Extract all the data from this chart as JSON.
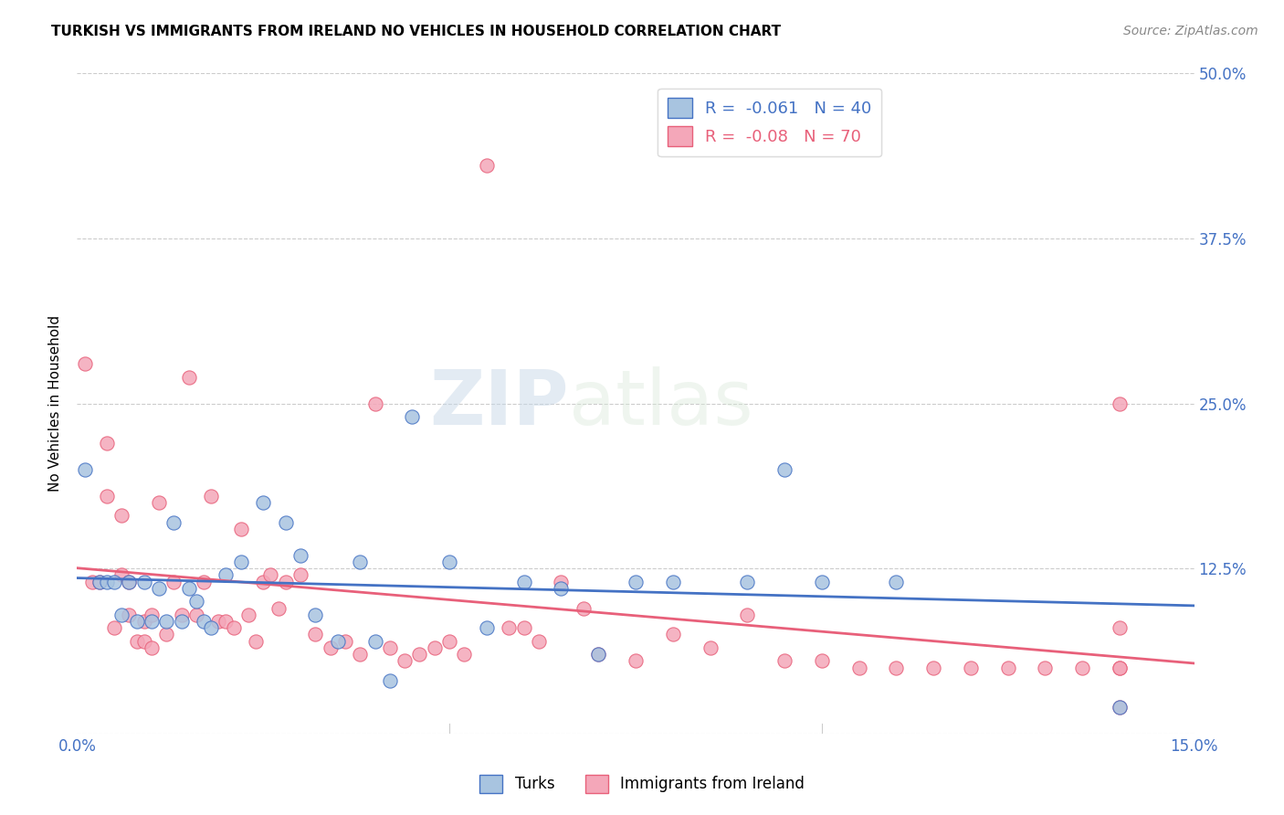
{
  "title": "TURKISH VS IMMIGRANTS FROM IRELAND NO VEHICLES IN HOUSEHOLD CORRELATION CHART",
  "source": "Source: ZipAtlas.com",
  "ylabel": "No Vehicles in Household",
  "xlim": [
    0.0,
    0.15
  ],
  "ylim": [
    0.0,
    0.5
  ],
  "xticks": [
    0.0,
    0.05,
    0.1,
    0.15
  ],
  "xticklabels": [
    "0.0%",
    "",
    "",
    "15.0%"
  ],
  "yticks": [
    0.0,
    0.125,
    0.25,
    0.375,
    0.5
  ],
  "right_yticklabels": [
    "",
    "12.5%",
    "25.0%",
    "37.5%",
    "50.0%"
  ],
  "turks_R": -0.061,
  "turks_N": 40,
  "ireland_R": -0.08,
  "ireland_N": 70,
  "turks_color": "#a8c4e0",
  "ireland_color": "#f4a7b9",
  "turks_line_color": "#4472c4",
  "ireland_line_color": "#e8607a",
  "legend_text_color": "#4472c4",
  "turks_x": [
    0.001,
    0.003,
    0.004,
    0.005,
    0.006,
    0.007,
    0.008,
    0.009,
    0.01,
    0.011,
    0.012,
    0.013,
    0.014,
    0.015,
    0.016,
    0.017,
    0.018,
    0.02,
    0.022,
    0.025,
    0.028,
    0.03,
    0.032,
    0.035,
    0.038,
    0.04,
    0.042,
    0.045,
    0.05,
    0.055,
    0.06,
    0.065,
    0.07,
    0.075,
    0.08,
    0.09,
    0.095,
    0.1,
    0.11,
    0.14
  ],
  "turks_y": [
    0.2,
    0.115,
    0.115,
    0.115,
    0.09,
    0.115,
    0.085,
    0.115,
    0.085,
    0.11,
    0.085,
    0.16,
    0.085,
    0.11,
    0.1,
    0.085,
    0.08,
    0.12,
    0.13,
    0.175,
    0.16,
    0.135,
    0.09,
    0.07,
    0.13,
    0.07,
    0.04,
    0.24,
    0.13,
    0.08,
    0.115,
    0.11,
    0.06,
    0.115,
    0.115,
    0.115,
    0.2,
    0.115,
    0.115,
    0.02
  ],
  "ireland_x": [
    0.001,
    0.002,
    0.003,
    0.004,
    0.004,
    0.005,
    0.006,
    0.006,
    0.007,
    0.007,
    0.008,
    0.009,
    0.009,
    0.01,
    0.01,
    0.011,
    0.012,
    0.013,
    0.014,
    0.015,
    0.016,
    0.017,
    0.018,
    0.019,
    0.02,
    0.021,
    0.022,
    0.023,
    0.024,
    0.025,
    0.026,
    0.027,
    0.028,
    0.03,
    0.032,
    0.034,
    0.036,
    0.038,
    0.04,
    0.042,
    0.044,
    0.046,
    0.048,
    0.05,
    0.052,
    0.055,
    0.058,
    0.06,
    0.062,
    0.065,
    0.068,
    0.07,
    0.075,
    0.08,
    0.085,
    0.09,
    0.095,
    0.1,
    0.105,
    0.11,
    0.115,
    0.12,
    0.125,
    0.13,
    0.135,
    0.14,
    0.14,
    0.14,
    0.14,
    0.14
  ],
  "ireland_y": [
    0.28,
    0.115,
    0.115,
    0.22,
    0.18,
    0.08,
    0.165,
    0.12,
    0.115,
    0.09,
    0.07,
    0.085,
    0.07,
    0.09,
    0.065,
    0.175,
    0.075,
    0.115,
    0.09,
    0.27,
    0.09,
    0.115,
    0.18,
    0.085,
    0.085,
    0.08,
    0.155,
    0.09,
    0.07,
    0.115,
    0.12,
    0.095,
    0.115,
    0.12,
    0.075,
    0.065,
    0.07,
    0.06,
    0.25,
    0.065,
    0.055,
    0.06,
    0.065,
    0.07,
    0.06,
    0.43,
    0.08,
    0.08,
    0.07,
    0.115,
    0.095,
    0.06,
    0.055,
    0.075,
    0.065,
    0.09,
    0.055,
    0.055,
    0.05,
    0.05,
    0.05,
    0.05,
    0.05,
    0.05,
    0.05,
    0.25,
    0.08,
    0.05,
    0.02,
    0.05
  ],
  "watermark_zip": "ZIP",
  "watermark_atlas": "atlas",
  "background_color": "#ffffff",
  "grid_color": "#cccccc",
  "grid_style": "--"
}
